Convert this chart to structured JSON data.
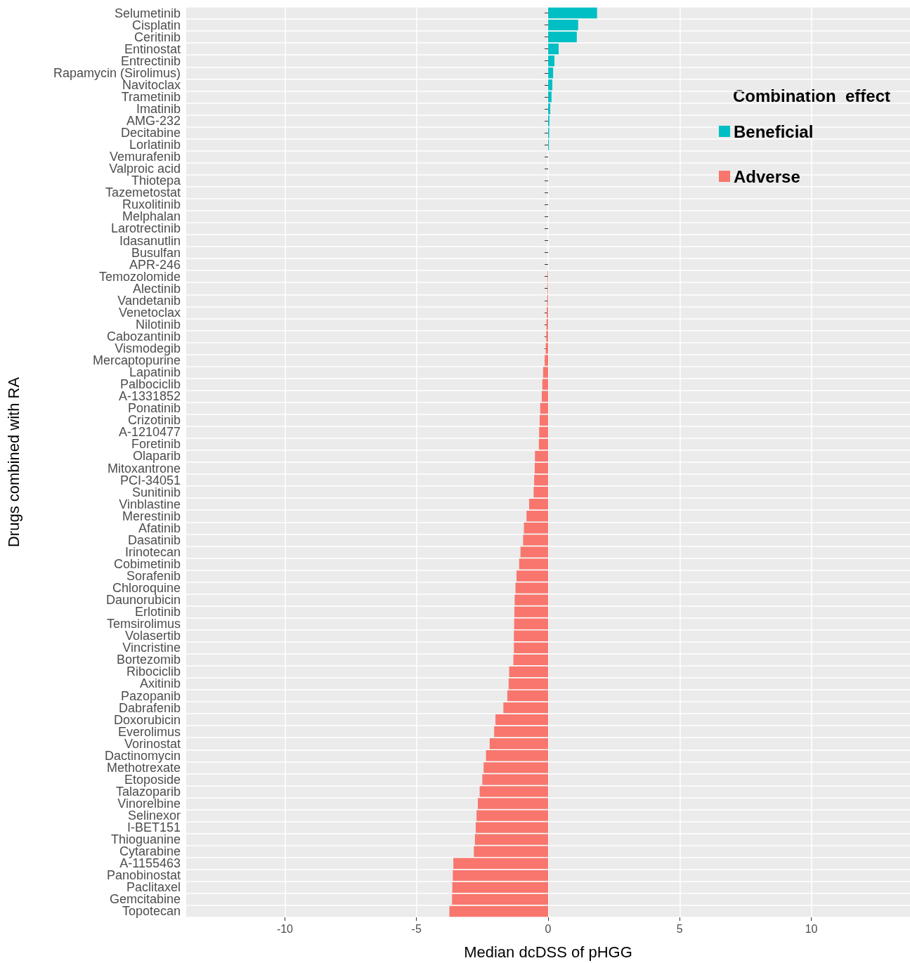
{
  "chart_data": {
    "type": "bar",
    "orientation": "horizontal",
    "stacked": true,
    "xlabel": "Median dcDSS of pHGG",
    "ylabel": "Drugs combined with RA",
    "legend_title": "Combination  effect",
    "legend": "top right",
    "grid": true,
    "categories": [
      "Selumetinib",
      "Cisplatin",
      "Ceritinib",
      "Entinostat",
      "Entrectinib",
      "Rapamycin (Sirolimus)",
      "Navitoclax",
      "Trametinib",
      "Imatinib",
      "AMG-232",
      "Decitabine",
      "Lorlatinib",
      "Vemurafenib",
      "Valproic acid",
      "Thiotepa",
      "Tazemetostat",
      "Ruxolitinib",
      "Melphalan",
      "Larotrectinib",
      "Idasanutlin",
      "Busulfan",
      "APR-246",
      "Temozolomide",
      "Alectinib",
      "Vandetanib",
      "Venetoclax",
      "Nilotinib",
      "Cabozantinib",
      "Vismodegib",
      "Mercaptopurine",
      "Lapatinib",
      "Palbociclib",
      "A-1331852",
      "Ponatinib",
      "Crizotinib",
      "A-1210477",
      "Foretinib",
      "Olaparib",
      "Mitoxantrone",
      "PCI-34051",
      "Sunitinib",
      "Vinblastine",
      "Merestinib",
      "Afatinib",
      "Dasatinib",
      "Irinotecan",
      "Cobimetinib",
      "Sorafenib",
      "Chloroquine",
      "Daunorubicin",
      "Erlotinib",
      "Temsirolimus",
      "Volasertib",
      "Vincristine",
      "Bortezomib",
      "Ribociclib",
      "Axitinib",
      "Pazopanib",
      "Dabrafenib",
      "Doxorubicin",
      "Everolimus",
      "Vorinostat",
      "Dactinomycin",
      "Methotrexate",
      "Etoposide",
      "Talazoparib",
      "Vinorelbine",
      "Selinexor",
      "I-BET151",
      "Thioguanine",
      "Cytarabine",
      "A-1155463",
      "Panobinostat",
      "Paclitaxel",
      "Gemcitabine",
      "Topotecan"
    ],
    "series": [
      {
        "name": "Beneficial",
        "color": "#00bfc4",
        "values": [
          1.86,
          1.14,
          1.09,
          0.4,
          0.24,
          0.19,
          0.16,
          0.13,
          0.08,
          0.05,
          0.04,
          0.03,
          null,
          null,
          null,
          null,
          null,
          null,
          null,
          null,
          null,
          null,
          null,
          null,
          null,
          null,
          null,
          null,
          null,
          null,
          null,
          null,
          null,
          null,
          null,
          null,
          null,
          null,
          null,
          null,
          null,
          null,
          null,
          null,
          null,
          null,
          null,
          null,
          null,
          null,
          null,
          null,
          null,
          null,
          null,
          null,
          null,
          null,
          null,
          null,
          null,
          null,
          null,
          null,
          null,
          null,
          null,
          null,
          null,
          null,
          null,
          null,
          null,
          null,
          null,
          null
        ]
      },
      {
        "name": "Adverse",
        "color": "#f8766d",
        "values": [
          null,
          null,
          null,
          null,
          null,
          null,
          null,
          null,
          null,
          null,
          null,
          null,
          0,
          0,
          0,
          0,
          0,
          0,
          0,
          0,
          0,
          0,
          -0.02,
          -0.02,
          -0.03,
          -0.05,
          -0.06,
          -0.07,
          -0.09,
          -0.13,
          -0.19,
          -0.22,
          -0.24,
          -0.3,
          -0.32,
          -0.34,
          -0.35,
          -0.5,
          -0.51,
          -0.53,
          -0.55,
          -0.72,
          -0.82,
          -0.92,
          -0.95,
          -1.05,
          -1.1,
          -1.2,
          -1.24,
          -1.27,
          -1.28,
          -1.29,
          -1.3,
          -1.3,
          -1.32,
          -1.48,
          -1.5,
          -1.55,
          -1.7,
          -2.0,
          -2.05,
          -2.22,
          -2.36,
          -2.45,
          -2.5,
          -2.6,
          -2.67,
          -2.72,
          -2.75,
          -2.78,
          -2.82,
          -3.6,
          -3.62,
          -3.64,
          -3.65,
          -3.75
        ]
      }
    ],
    "xlim": [
      -13.75,
      13.75
    ],
    "xticks": [
      -10,
      -5,
      0,
      5,
      10
    ]
  }
}
